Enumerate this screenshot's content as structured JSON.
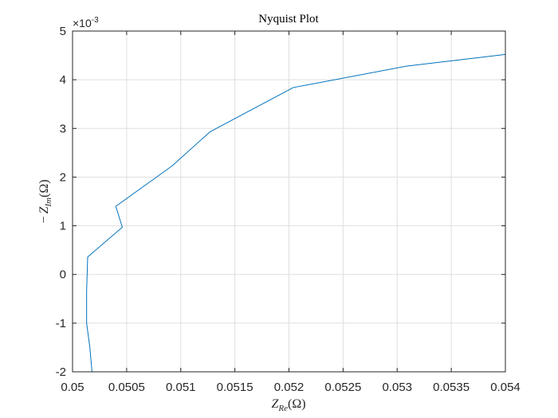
{
  "chart_data": {
    "type": "line",
    "title": "Nyquist Plot",
    "xlabel": {
      "main": "Z",
      "sub": "Re",
      "unit": "(Ω)"
    },
    "ylabel": {
      "prefix": "−",
      "main": "Z",
      "sub": "Im",
      "unit": "(Ω)"
    },
    "ylabel_exponent": {
      "base": "×10",
      "power": "-3"
    },
    "xlim": [
      0.05,
      0.054
    ],
    "ylim": [
      -0.002,
      0.005
    ],
    "xticks": [
      0.05,
      0.0505,
      0.051,
      0.0515,
      0.052,
      0.0525,
      0.053,
      0.0535,
      0.054
    ],
    "xtick_labels": [
      "0.05",
      "0.0505",
      "0.051",
      "0.0515",
      "0.052",
      "0.0525",
      "0.053",
      "0.0535",
      "0.054"
    ],
    "yticks": [
      -0.002,
      -0.001,
      0,
      0.001,
      0.002,
      0.003,
      0.004,
      0.005
    ],
    "ytick_labels": [
      "-2",
      "-1",
      "0",
      "1",
      "2",
      "3",
      "4",
      "5"
    ],
    "grid": true,
    "series": [
      {
        "color": "#0072bd",
        "x": [
          0.05018,
          0.05016,
          0.05013,
          0.05013,
          0.05014,
          0.05046,
          0.0504,
          0.05092,
          0.05127,
          0.05204,
          0.05309,
          0.054
        ],
        "y": [
          -0.002,
          -0.0015,
          -0.001,
          -0.00035,
          0.00036,
          0.00097,
          0.0014,
          0.00223,
          0.00293,
          0.00384,
          0.00428,
          0.00452
        ]
      }
    ]
  }
}
